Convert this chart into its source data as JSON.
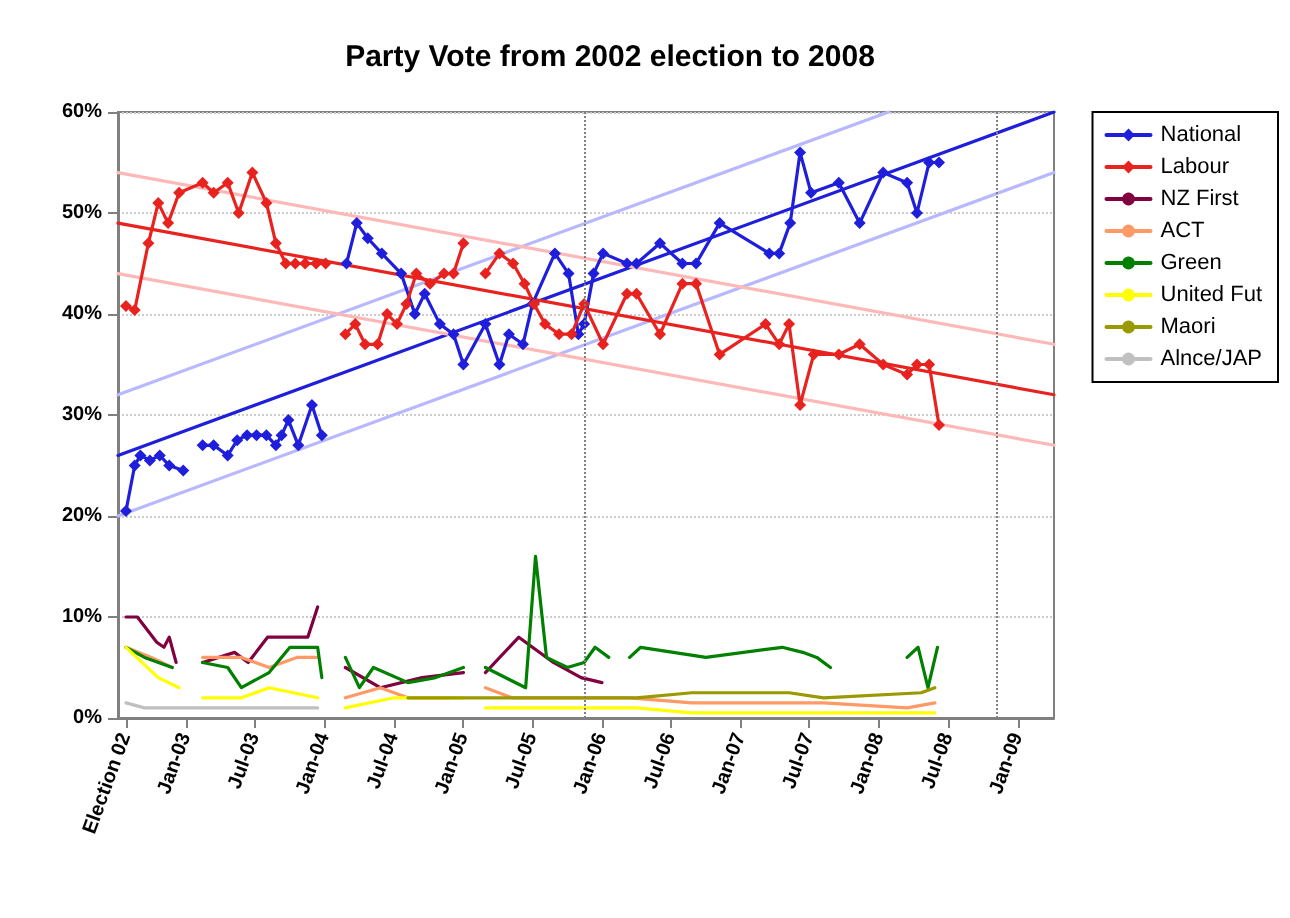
{
  "chart_data": {
    "type": "line",
    "title": "Party Vote from 2002 election to 2008",
    "xlim": [
      "2002-07-06",
      "2009-04-06"
    ],
    "xticks": [
      {
        "value": "2002-07-27",
        "label": "Election 02"
      },
      {
        "value": "2003-01-01",
        "label": "Jan-03"
      },
      {
        "value": "2003-07-01",
        "label": "Jul-03"
      },
      {
        "value": "2004-01-01",
        "label": "Jan-04"
      },
      {
        "value": "2004-07-01",
        "label": "Jul-04"
      },
      {
        "value": "2005-01-01",
        "label": "Jan-05"
      },
      {
        "value": "2005-07-01",
        "label": "Jul-05"
      },
      {
        "value": "2006-01-01",
        "label": "Jan-06"
      },
      {
        "value": "2006-07-01",
        "label": "Jul-06"
      },
      {
        "value": "2007-01-01",
        "label": "Jan-07"
      },
      {
        "value": "2007-07-01",
        "label": "Jul-07"
      },
      {
        "value": "2008-01-01",
        "label": "Jan-08"
      },
      {
        "value": "2008-07-01",
        "label": "Jul-08"
      },
      {
        "value": "2009-01-01",
        "label": "Jan-09"
      }
    ],
    "ylim": [
      0,
      60
    ],
    "yticks": [
      {
        "value": 0,
        "label": "0%"
      },
      {
        "value": 10,
        "label": "10%"
      },
      {
        "value": 20,
        "label": "20%"
      },
      {
        "value": 30,
        "label": "30%"
      },
      {
        "value": 40,
        "label": "40%"
      },
      {
        "value": 50,
        "label": "50%"
      },
      {
        "value": 60,
        "label": "60%"
      }
    ],
    "grid": "y",
    "legend": "right",
    "ref_lines": [
      {
        "axis": "x",
        "value": "2005-11-15",
        "color": "#808080",
        "line_style": "dotted"
      },
      {
        "axis": "x",
        "value": "2008-11-08",
        "color": "#808080",
        "line_style": "dotted"
      }
    ],
    "series": [
      {
        "name": "National",
        "color": "#1f1fdb",
        "marker": "diamond",
        "x": [
          "2002-07-27",
          "2002-08-19",
          "2002-09-03",
          "2002-09-28",
          "2002-10-24",
          "2002-11-18",
          "2002-12-25",
          "2003-01-19",
          "2003-02-14",
          "2003-03-15",
          "2003-04-21",
          "2003-05-16",
          "2003-06-11",
          "2003-07-06",
          "2003-08-01",
          "2003-08-26",
          "2003-09-10",
          "2003-09-28",
          "2003-10-24",
          "2003-11-29",
          "2003-12-25",
          "2004-01-30",
          "2004-02-28",
          "2004-03-26",
          "2004-04-24",
          "2004-05-31",
          "2004-07-21",
          "2004-08-26",
          "2004-09-21",
          "2004-10-31",
          "2004-12-06",
          "2005-01-01",
          "2005-02-28",
          "2005-04-06",
          "2005-05-01",
          "2005-06-07",
          "2005-07-02",
          "2005-08-30",
          "2005-10-05",
          "2005-10-31",
          "2005-11-15",
          "2005-12-10",
          "2006-01-04",
          "2006-03-08",
          "2006-04-02",
          "2006-06-03",
          "2006-08-01",
          "2006-09-06",
          "2006-11-07",
          "2007-03-18",
          "2007-04-13",
          "2007-05-12",
          "2007-06-07",
          "2007-07-06",
          "2007-09-17",
          "2007-11-11",
          "2008-01-12",
          "2008-03-15",
          "2008-04-10",
          "2008-05-12",
          "2008-06-07"
        ],
        "values": [
          20.5,
          25,
          26,
          25.5,
          26,
          25,
          24.5,
          null,
          27,
          27,
          26,
          27.5,
          28,
          28,
          28,
          27,
          28,
          29.5,
          27,
          31,
          28,
          null,
          45,
          49,
          47.5,
          46,
          44,
          40,
          42,
          39,
          38,
          35,
          39,
          35,
          38,
          37,
          41,
          46,
          44,
          38,
          39,
          44,
          46,
          45,
          45,
          47,
          45,
          45,
          49,
          46,
          46,
          49,
          56,
          52,
          53,
          49,
          54,
          53,
          50,
          55,
          55
        ]
      },
      {
        "name": "Labour",
        "color": "#e8231f",
        "marker": "diamond",
        "x": [
          "2002-07-27",
          "2002-08-19",
          "2002-09-24",
          "2002-10-20",
          "2002-11-15",
          "2002-12-14",
          "2003-02-14",
          "2003-03-15",
          "2003-04-21",
          "2003-05-20",
          "2003-06-25",
          "2003-08-01",
          "2003-08-26",
          "2003-09-21",
          "2003-10-16",
          "2003-11-11",
          "2003-12-10",
          "2004-01-04",
          "2004-01-30",
          "2004-02-25",
          "2004-03-22",
          "2004-04-17",
          "2004-05-20",
          "2004-06-14",
          "2004-07-10",
          "2004-08-04",
          "2004-08-30",
          "2004-10-05",
          "2004-11-11",
          "2004-12-06",
          "2005-01-01",
          "2005-01-30",
          "2005-02-28",
          "2005-04-06",
          "2005-05-12",
          "2005-06-11",
          "2005-07-06",
          "2005-08-04",
          "2005-09-10",
          "2005-10-13",
          "2005-11-15",
          "2006-01-04",
          "2006-03-08",
          "2006-04-02",
          "2006-06-03",
          "2006-08-01",
          "2006-09-06",
          "2006-11-07",
          "2007-03-08",
          "2007-04-13",
          "2007-05-09",
          "2007-06-07",
          "2007-07-13",
          "2007-09-17",
          "2007-11-11",
          "2008-01-12",
          "2008-03-15",
          "2008-04-10",
          "2008-05-12",
          "2008-06-07"
        ],
        "values": [
          40.8,
          40.4,
          47,
          51,
          49,
          52,
          53,
          52,
          53,
          50,
          54,
          51,
          47,
          45,
          45,
          45,
          45,
          45,
          null,
          38,
          39,
          37,
          37,
          40,
          39,
          41,
          44,
          43,
          44,
          44,
          47,
          null,
          44,
          46,
          45,
          43,
          41,
          39,
          38,
          38,
          41,
          37,
          42,
          42,
          38,
          43,
          43,
          36,
          39,
          37,
          39,
          31,
          36,
          36,
          37,
          35,
          34,
          35,
          35,
          29
        ]
      },
      {
        "name": "NZ First",
        "color": "#800040",
        "marker": "none",
        "x": [
          "2002-07-27",
          "2002-08-26",
          "2002-10-16",
          "2002-11-04",
          "2002-11-18",
          "2002-12-06",
          "2003-01-12",
          "2003-02-14",
          "2003-05-09",
          "2003-06-14",
          "2003-08-04",
          "2003-11-18",
          "2003-12-14",
          "2004-01-30",
          "2004-02-25",
          "2004-05-27",
          "2004-09-14",
          "2005-01-01",
          "2005-01-30",
          "2005-02-28",
          "2005-05-27",
          "2005-07-02",
          "2005-08-26",
          "2005-11-07",
          "2006-01-01"
        ],
        "values": [
          10,
          10,
          7.5,
          7,
          8,
          5.5,
          null,
          5.5,
          6.5,
          5.5,
          8,
          8,
          11,
          null,
          5,
          3,
          4,
          4.5,
          null,
          4.5,
          8,
          7,
          5.5,
          4,
          3.5
        ]
      },
      {
        "name": "ACT",
        "color": "#ff9966",
        "marker": "none",
        "x": [
          "2002-07-27",
          "2002-10-02",
          "2002-11-26",
          "2003-01-12",
          "2003-02-14",
          "2003-05-27",
          "2003-08-08",
          "2003-10-20",
          "2003-12-14",
          "2004-01-30",
          "2004-02-25",
          "2004-05-27",
          "2004-08-08",
          "2004-11-26",
          "2005-01-30",
          "2005-02-28",
          "2005-05-09",
          "2005-08-08",
          "2005-11-07",
          "2006-03-15",
          "2006-08-26",
          "2007-04-21",
          "2007-08-08",
          "2008-03-15",
          "2008-05-27"
        ],
        "values": [
          7,
          6,
          5,
          null,
          6,
          6,
          5,
          6,
          6,
          null,
          2,
          3,
          2,
          2,
          null,
          3,
          2,
          2,
          2,
          2,
          1.5,
          1.5,
          1.5,
          1,
          1.5
        ]
      },
      {
        "name": "Green",
        "color": "#008000",
        "marker": "none",
        "x": [
          "2002-07-27",
          "2002-09-14",
          "2002-11-26",
          "2003-01-12",
          "2003-02-14",
          "2003-04-21",
          "2003-05-27",
          "2003-08-08",
          "2003-10-02",
          "2003-12-14",
          "2003-12-25",
          "2004-01-30",
          "2004-02-25",
          "2004-04-02",
          "2004-05-09",
          "2004-08-08",
          "2004-10-20",
          "2005-01-01",
          "2005-01-30",
          "2005-02-28",
          "2005-06-14",
          "2005-07-10",
          "2005-08-08",
          "2005-10-02",
          "2005-11-15",
          "2005-12-14",
          "2006-01-19",
          "2006-02-14",
          "2006-03-15",
          "2006-04-13",
          "2006-10-02",
          "2007-04-21",
          "2007-06-14",
          "2007-07-21",
          "2007-08-26",
          "2007-11-26",
          "2008-03-15",
          "2008-04-13",
          "2008-05-09",
          "2008-06-03"
        ],
        "values": [
          7,
          6,
          5,
          null,
          5.5,
          5,
          3,
          4.5,
          7,
          7,
          4,
          null,
          6,
          3,
          5,
          3.5,
          4,
          5,
          null,
          5,
          3,
          16,
          6,
          5,
          5.5,
          7,
          6,
          null,
          6,
          7,
          6,
          7,
          6.5,
          6,
          5,
          null,
          6,
          7,
          3,
          7
        ]
      },
      {
        "name": "United Fut",
        "color": "#ffff00",
        "marker": "none",
        "x": [
          "2002-07-27",
          "2002-10-20",
          "2002-12-14",
          "2003-01-12",
          "2003-02-14",
          "2003-05-27",
          "2003-08-08",
          "2003-12-14",
          "2004-01-30",
          "2004-02-25",
          "2004-07-02",
          "2005-01-01",
          "2005-01-30",
          "2005-02-28",
          "2005-07-02",
          "2005-11-26",
          "2006-04-02",
          "2006-08-26",
          "2007-04-21",
          "2007-08-08",
          "2008-05-27"
        ],
        "values": [
          7,
          4,
          3,
          null,
          2,
          2,
          3,
          2,
          null,
          1,
          2,
          2,
          null,
          1,
          1,
          1,
          1,
          0.5,
          0.5,
          0.5,
          0.5
        ]
      },
      {
        "name": "Maori",
        "color": "#999900",
        "marker": "none",
        "x": [
          "2004-08-08",
          "2005-01-01",
          "2005-04-21",
          "2005-07-02",
          "2005-11-07",
          "2006-04-02",
          "2006-08-26",
          "2007-05-09",
          "2007-08-08",
          "2008-04-21",
          "2008-05-27"
        ],
        "values": [
          2,
          2,
          2,
          2,
          2,
          2,
          2.5,
          2.5,
          2,
          2.5,
          3
        ]
      },
      {
        "name": "Alnce/JAP",
        "color": "#c0c0c0",
        "marker": "none",
        "x": [
          "2002-07-27",
          "2002-09-14",
          "2002-11-26",
          "2003-03-15",
          "2003-08-08",
          "2003-12-14"
        ],
        "values": [
          1.5,
          1,
          1,
          1,
          1,
          1
        ]
      },
      {
        "color": "#1f1fdb",
        "marker": "none",
        "x": [
          "2002-07-06",
          "2009-04-06"
        ],
        "values": [
          26,
          60
        ]
      },
      {
        "color": "#b8b8ff",
        "marker": "none",
        "x": [
          "2002-07-06",
          "2008-01-26"
        ],
        "values": [
          32,
          60
        ]
      },
      {
        "color": "#b8b8ff",
        "marker": "none",
        "x": [
          "2002-07-06",
          "2009-04-06"
        ],
        "values": [
          20,
          54
        ]
      },
      {
        "color": "#e8231f",
        "marker": "none",
        "x": [
          "2002-07-06",
          "2009-04-06"
        ],
        "values": [
          49,
          32
        ]
      },
      {
        "color": "#ffb8b8",
        "marker": "none",
        "x": [
          "2002-07-06",
          "2009-04-06"
        ],
        "values": [
          54,
          37
        ]
      },
      {
        "color": "#ffb8b8",
        "marker": "none",
        "x": [
          "2002-07-06",
          "2009-04-06"
        ],
        "values": [
          44,
          27
        ]
      }
    ]
  }
}
